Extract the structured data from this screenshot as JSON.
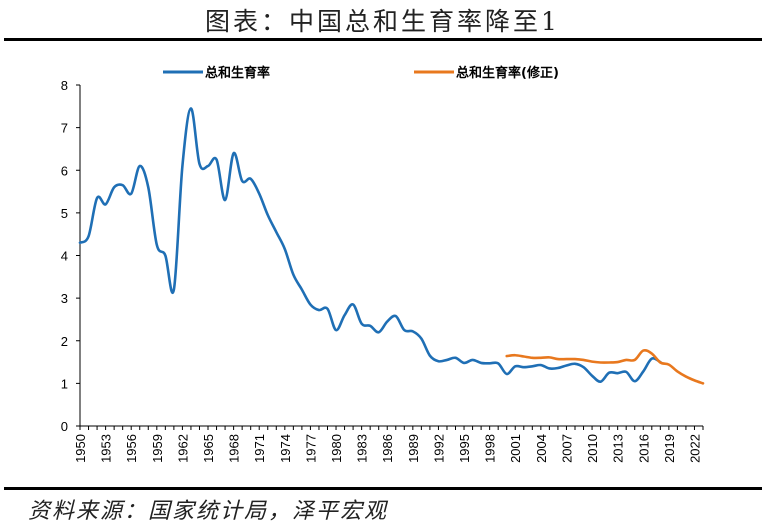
{
  "title": "图表：中国总和生育率降至1",
  "source": "资料来源：国家统计局，泽平宏观",
  "chart_data": {
    "type": "line",
    "ylim": [
      0,
      8
    ],
    "yticks": [
      0,
      1,
      2,
      3,
      4,
      5,
      6,
      7,
      8
    ],
    "xlim": [
      1950,
      2023
    ],
    "xtick_labels": [
      "1950",
      "1953",
      "1956",
      "1959",
      "1962",
      "1965",
      "1968",
      "1971",
      "1974",
      "1977",
      "1980",
      "1983",
      "1986",
      "1989",
      "1992",
      "1995",
      "1998",
      "2001",
      "2004",
      "2007",
      "2010",
      "2013",
      "2016",
      "2019",
      "2022"
    ],
    "legend_position": "top",
    "series": [
      {
        "name": "总和生育率",
        "color": "#1f6fb5",
        "x": [
          1950,
          1951,
          1952,
          1953,
          1954,
          1955,
          1956,
          1957,
          1958,
          1959,
          1960,
          1961,
          1962,
          1963,
          1964,
          1965,
          1966,
          1967,
          1968,
          1969,
          1970,
          1971,
          1972,
          1973,
          1974,
          1975,
          1976,
          1977,
          1978,
          1979,
          1980,
          1981,
          1982,
          1983,
          1984,
          1985,
          1986,
          1987,
          1988,
          1989,
          1990,
          1991,
          1992,
          1993,
          1994,
          1995,
          1996,
          1997,
          1998,
          1999,
          2000,
          2001,
          2002,
          2003,
          2004,
          2005,
          2006,
          2007,
          2008,
          2009,
          2010,
          2011,
          2012,
          2013,
          2014,
          2015,
          2016,
          2017,
          2018
        ],
        "y": [
          4.3,
          4.45,
          5.35,
          5.2,
          5.6,
          5.65,
          5.45,
          6.1,
          5.6,
          4.25,
          4.0,
          3.2,
          6.1,
          7.45,
          6.15,
          6.1,
          6.25,
          5.3,
          6.4,
          5.75,
          5.8,
          5.45,
          4.95,
          4.55,
          4.15,
          3.55,
          3.2,
          2.85,
          2.72,
          2.75,
          2.25,
          2.6,
          2.85,
          2.4,
          2.35,
          2.2,
          2.45,
          2.58,
          2.25,
          2.22,
          2.05,
          1.65,
          1.52,
          1.55,
          1.6,
          1.48,
          1.55,
          1.48,
          1.47,
          1.47,
          1.22,
          1.4,
          1.38,
          1.4,
          1.43,
          1.35,
          1.36,
          1.42,
          1.46,
          1.38,
          1.18,
          1.04,
          1.25,
          1.24,
          1.27,
          1.05,
          1.28,
          1.58,
          1.5
        ]
      },
      {
        "name": "总和生育率(修正)",
        "color": "#e8781e",
        "x": [
          2000,
          2001,
          2002,
          2003,
          2004,
          2005,
          2006,
          2007,
          2008,
          2009,
          2010,
          2011,
          2012,
          2013,
          2014,
          2015,
          2016,
          2017,
          2018,
          2019,
          2020,
          2021,
          2022,
          2023
        ],
        "y": [
          1.64,
          1.66,
          1.63,
          1.6,
          1.6,
          1.61,
          1.57,
          1.57,
          1.57,
          1.55,
          1.51,
          1.49,
          1.49,
          1.5,
          1.55,
          1.55,
          1.77,
          1.7,
          1.49,
          1.44,
          1.28,
          1.16,
          1.07,
          1.0
        ]
      }
    ]
  }
}
